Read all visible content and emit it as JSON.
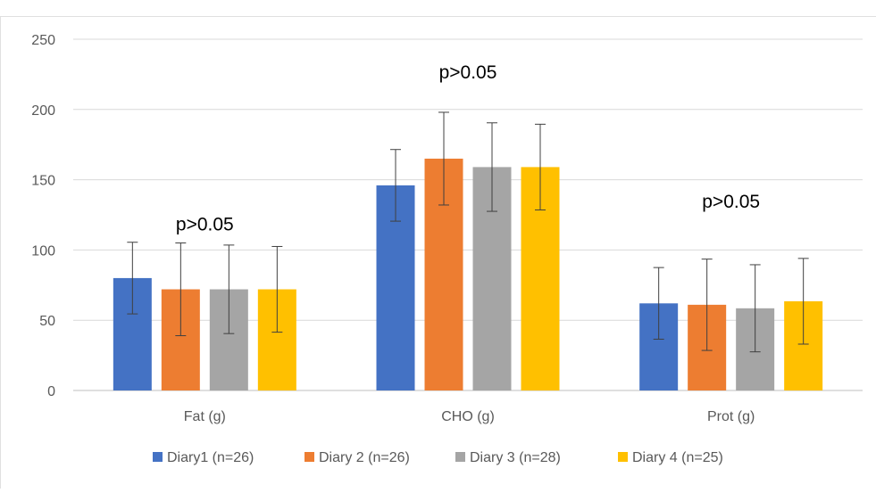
{
  "chart_data": {
    "type": "bar",
    "title": "",
    "xlabel": "",
    "ylabel": "",
    "categories": [
      "Fat (g)",
      "CHO (g)",
      "Prot (g)"
    ],
    "ylim": [
      0,
      250
    ],
    "yticks": [
      0,
      50,
      100,
      150,
      200,
      250
    ],
    "grid": true,
    "legend_position": "bottom",
    "series": [
      {
        "name": "Diary1 (n=26)",
        "color": "#4472C4",
        "values": [
          80,
          146,
          62
        ],
        "error": [
          25.5,
          25.5,
          25.5
        ]
      },
      {
        "name": "Diary 2 (n=26)",
        "color": "#ED7D31",
        "values": [
          72,
          165,
          61
        ],
        "error": [
          33,
          33,
          32.5
        ]
      },
      {
        "name": "Diary 3 (n=28)",
        "color": "#A5A5A5",
        "values": [
          72,
          159,
          58.5
        ],
        "error": [
          31.5,
          31.5,
          31
        ]
      },
      {
        "name": "Diary 4 (n=25)",
        "color": "#FFC000",
        "values": [
          72,
          159,
          63.5
        ],
        "error": [
          30.5,
          30.5,
          30.5
        ]
      }
    ],
    "annotations": [
      {
        "text": "p>0.05",
        "category": "Fat (g)",
        "y": 119
      },
      {
        "text": "p>0.05",
        "category": "CHO (g)",
        "y": 227
      },
      {
        "text": "p>0.05",
        "category": "Prot (g)",
        "y": 135
      }
    ]
  }
}
